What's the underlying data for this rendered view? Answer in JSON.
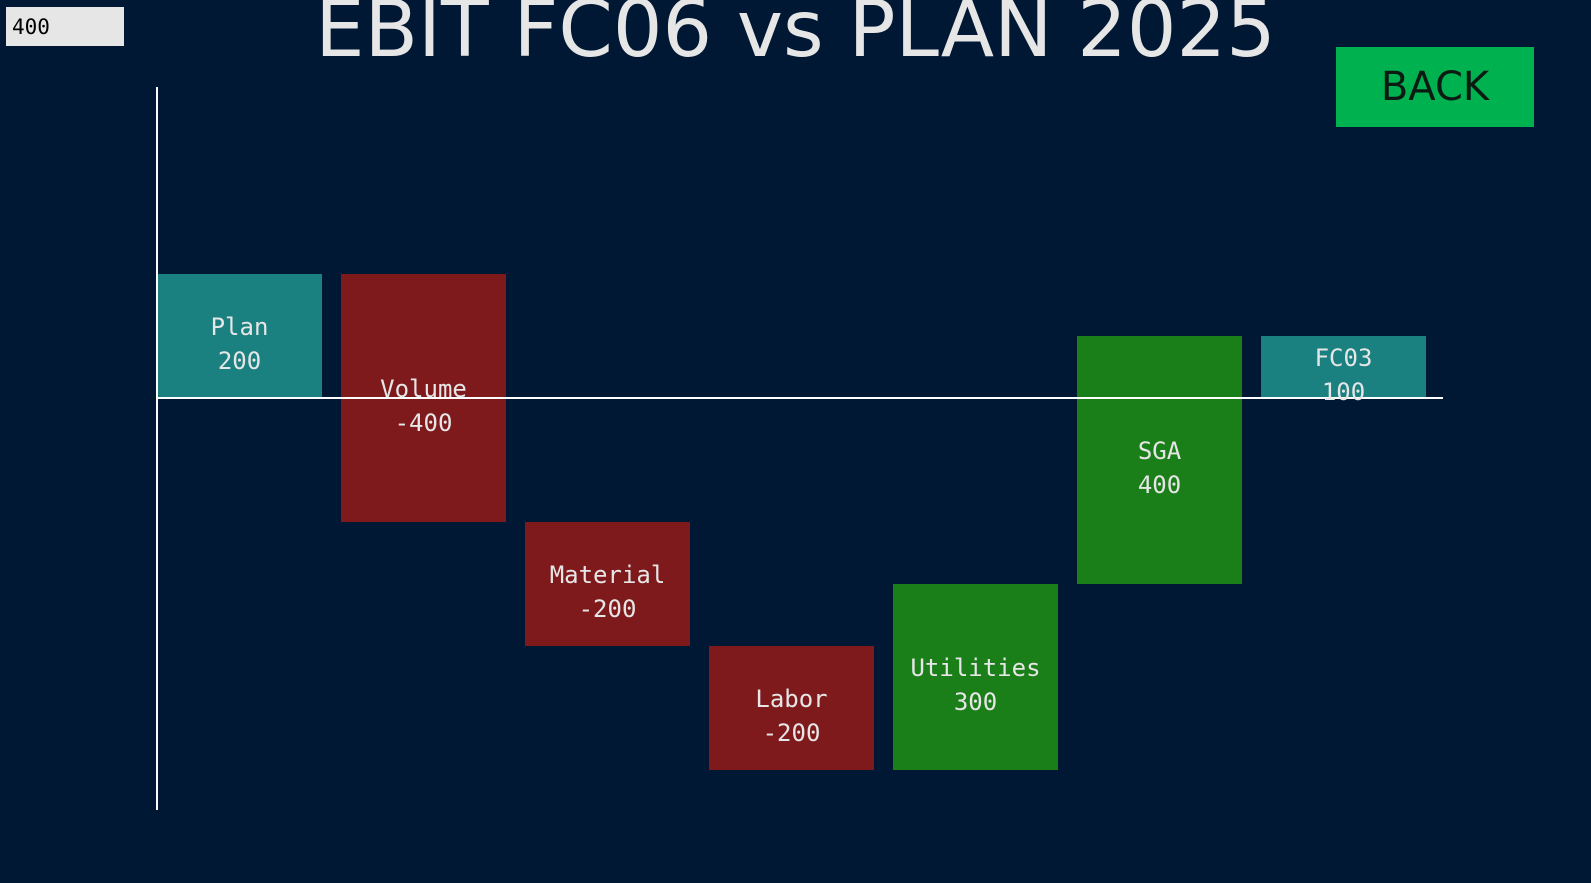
{
  "input": {
    "value": "400"
  },
  "header": {
    "title": "EBIT FC06 vs PLAN 2025"
  },
  "buttons": {
    "back_label": "BACK"
  },
  "colors": {
    "background": "#001833",
    "total": "#1a8080",
    "negative": "#7f1a1c",
    "positive": "#1b7f19",
    "axis": "#ffffff",
    "back_button": "#00b14f"
  },
  "chart_data": {
    "type": "bar",
    "subtype": "waterfall",
    "title": "EBIT FC06 vs PLAN 2025",
    "xlabel": "",
    "ylabel": "",
    "ylim": [
      -600,
      500
    ],
    "categories": [
      "Plan",
      "Volume",
      "Material",
      "Labor",
      "Utilities",
      "SGA",
      "FC03"
    ],
    "bars": [
      {
        "label": "Plan",
        "value": 200,
        "start": 0,
        "end": 200,
        "kind": "total"
      },
      {
        "label": "Volume",
        "value": -400,
        "start": 200,
        "end": -200,
        "kind": "negative"
      },
      {
        "label": "Material",
        "value": -200,
        "start": -200,
        "end": -400,
        "kind": "negative"
      },
      {
        "label": "Labor",
        "value": -200,
        "start": -400,
        "end": -600,
        "kind": "negative"
      },
      {
        "label": "Utilities",
        "value": 300,
        "start": -600,
        "end": -300,
        "kind": "positive"
      },
      {
        "label": "SGA",
        "value": 400,
        "start": -300,
        "end": 100,
        "kind": "positive"
      },
      {
        "label": "FC03",
        "value": 100,
        "start": 0,
        "end": 100,
        "kind": "total"
      }
    ],
    "grid": false,
    "legend": "none"
  }
}
